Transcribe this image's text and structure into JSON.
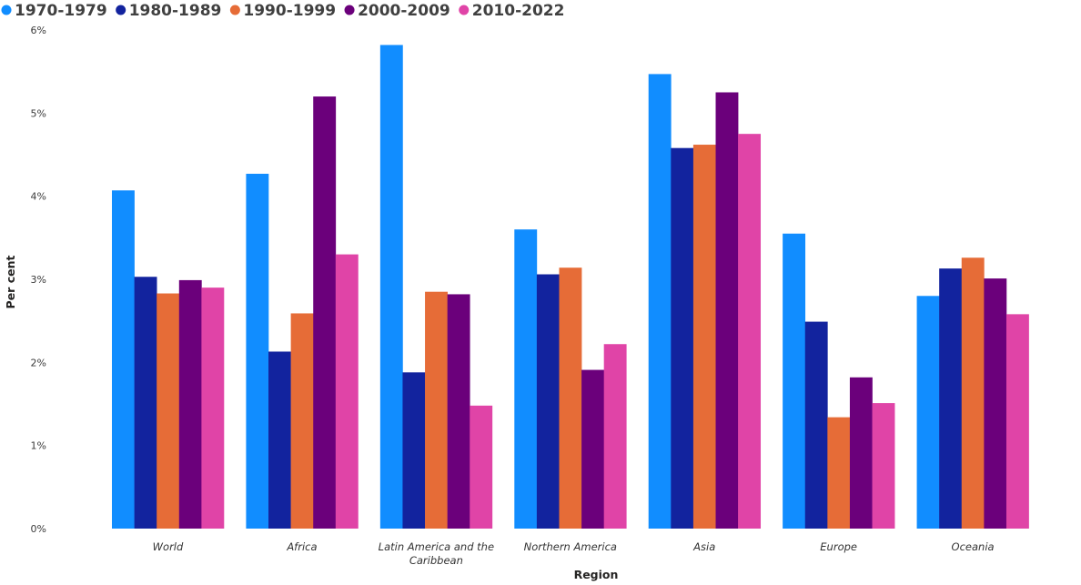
{
  "chart_data": {
    "type": "bar",
    "xlabel": "Region",
    "ylabel": "Per cent",
    "ylim": [
      0,
      6
    ],
    "yticks": [
      "0%",
      "1%",
      "2%",
      "3%",
      "4%",
      "5%",
      "6%"
    ],
    "categories": [
      [
        "World"
      ],
      [
        "Africa"
      ],
      [
        "Latin America and the",
        "Caribbean"
      ],
      [
        "Northern America"
      ],
      [
        "Asia"
      ],
      [
        "Europe"
      ],
      [
        "Oceania"
      ]
    ],
    "grid": false,
    "legend_position": "top-left",
    "series": [
      {
        "name": "1970-1979",
        "color": "#118DFF",
        "values": [
          4.07,
          4.27,
          5.82,
          3.6,
          5.47,
          3.55,
          2.8
        ]
      },
      {
        "name": "1980-1989",
        "color": "#12239E",
        "values": [
          3.03,
          2.13,
          1.88,
          3.06,
          4.58,
          2.49,
          3.13
        ]
      },
      {
        "name": "1990-1999",
        "color": "#E66C37",
        "values": [
          2.83,
          2.59,
          2.85,
          3.14,
          4.62,
          1.34,
          3.26
        ]
      },
      {
        "name": "2000-2009",
        "color": "#6B007B",
        "values": [
          2.99,
          5.2,
          2.82,
          1.91,
          5.25,
          1.82,
          3.01
        ]
      },
      {
        "name": "2010-2022",
        "color": "#E044A7",
        "values": [
          2.9,
          3.3,
          1.48,
          2.22,
          4.75,
          1.51,
          2.58
        ]
      }
    ]
  }
}
